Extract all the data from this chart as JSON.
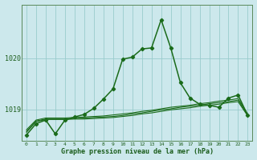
{
  "xlabel": "Graphe pression niveau de la mer (hPa)",
  "bg_color": "#cce8ec",
  "grid_color": "#99cccc",
  "line_color": "#1a6b1a",
  "xlim": [
    -0.5,
    23.5
  ],
  "ylim": [
    1018.38,
    1021.05
  ],
  "yticks": [
    1019,
    1020
  ],
  "xticks": [
    0,
    1,
    2,
    3,
    4,
    5,
    6,
    7,
    8,
    9,
    10,
    11,
    12,
    13,
    14,
    15,
    16,
    17,
    18,
    19,
    20,
    21,
    22,
    23
  ],
  "main_y": [
    1018.5,
    1018.72,
    1018.79,
    1018.52,
    1018.79,
    1018.85,
    1018.9,
    1019.02,
    1019.2,
    1019.4,
    1019.98,
    1020.02,
    1020.18,
    1020.2,
    1020.75,
    1020.2,
    1019.52,
    1019.22,
    1019.1,
    1019.08,
    1019.04,
    1019.22,
    1019.28,
    1018.88
  ],
  "bg_lines": [
    [
      1018.55,
      1018.76,
      1018.8,
      1018.8,
      1018.8,
      1018.81,
      1018.81,
      1018.82,
      1018.83,
      1018.84,
      1018.86,
      1018.88,
      1018.91,
      1018.93,
      1018.96,
      1018.99,
      1019.01,
      1019.03,
      1019.06,
      1019.08,
      1019.1,
      1019.13,
      1019.15,
      1018.87
    ],
    [
      1018.57,
      1018.77,
      1018.81,
      1018.81,
      1018.81,
      1018.82,
      1018.83,
      1018.84,
      1018.85,
      1018.86,
      1018.88,
      1018.91,
      1018.93,
      1018.96,
      1018.99,
      1019.01,
      1019.04,
      1019.06,
      1019.08,
      1019.11,
      1019.13,
      1019.15,
      1019.18,
      1018.89
    ],
    [
      1018.6,
      1018.79,
      1018.83,
      1018.83,
      1018.83,
      1018.84,
      1018.85,
      1018.86,
      1018.87,
      1018.89,
      1018.91,
      1018.93,
      1018.96,
      1018.98,
      1019.01,
      1019.04,
      1019.06,
      1019.08,
      1019.11,
      1019.13,
      1019.16,
      1019.18,
      1019.21,
      1018.91
    ]
  ]
}
